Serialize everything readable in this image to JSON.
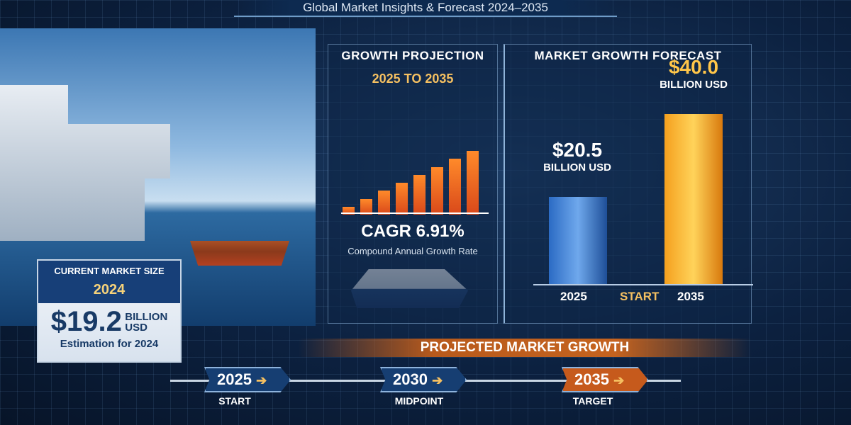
{
  "title": "Global Market Insights & Forecast 2024–2035",
  "growth_projection": {
    "heading": "GROWTH PROJECTION",
    "range": "2025 TO 2035",
    "cagr_label": "CAGR 6.91%",
    "cagr_sub": "Compound Annual Growth Rate",
    "mini_bars": [
      1,
      2,
      3,
      4,
      5,
      6,
      7,
      8
    ]
  },
  "market_forecast": {
    "heading": "MARKET GROWTH FORECAST",
    "bars": [
      {
        "year": "2025",
        "value": 20.5,
        "value_label": "$20.5",
        "unit": "BILLION USD",
        "color": "#3a7fd6"
      },
      {
        "year": "2035",
        "value": 40.0,
        "value_label": "$40.0",
        "unit": "BILLION USD",
        "color": "#f5a01e"
      }
    ],
    "middle_label": "START"
  },
  "current_market": {
    "heading": "CURRENT MARKET SIZE",
    "year": "2024",
    "value": "$19.2",
    "unit_line1": "BILLION",
    "unit_line2": "USD",
    "note": "Estimation for 2024"
  },
  "projected_banner": "PROJECTED MARKET GROWTH",
  "timeline": [
    {
      "year": "2025",
      "label": "START"
    },
    {
      "year": "2030",
      "label": "MIDPOINT"
    },
    {
      "year": "2035",
      "label": "TARGET"
    }
  ],
  "colors": {
    "background": "#0c2140",
    "accent_orange": "#c65a1c",
    "accent_gold": "#f5c061",
    "blue": "#173f78"
  }
}
